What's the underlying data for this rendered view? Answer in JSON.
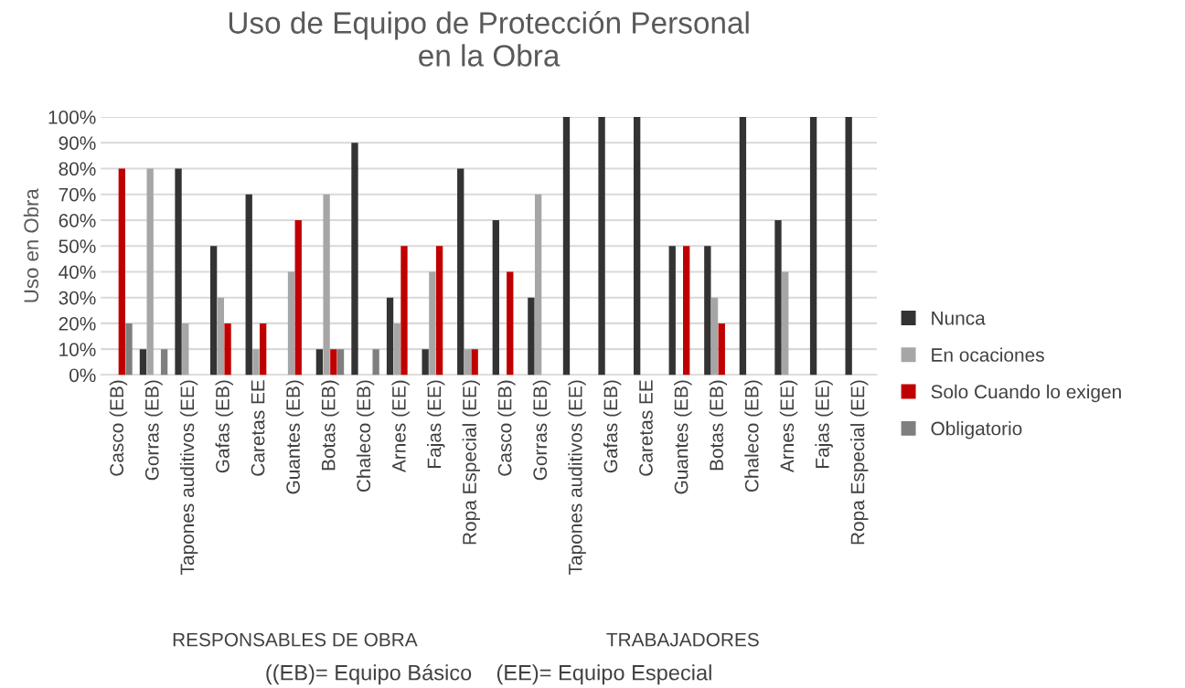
{
  "chart_data": {
    "type": "bar",
    "title": "Uso de Equipo de Protección Personal\nen la Obra",
    "ylabel": "Uso en Obra",
    "categories": [
      "Casco (EB)",
      "Gorras (EB)",
      "Tapones auditivos (EE)",
      "Gafas (EB)",
      "Caretas EE",
      "Guantes (EB)",
      "Botas (EB)",
      "Chaleco (EB)",
      "Arnes (EE)",
      "Fajas (EE)",
      "Ropa Especial (EE)",
      "Casco (EB)",
      "Gorras (EB)",
      "Tapones auditivos (EE)",
      "Gafas (EB)",
      "Caretas EE",
      "Guantes (EB)",
      "Botas (EB)",
      "Chaleco (EB)",
      "Arnes (EE)",
      "Fajas (EE)",
      "Ropa Especial (EE)"
    ],
    "series": [
      {
        "name": "Nunca",
        "color": "#333333",
        "values": [
          0,
          10,
          80,
          50,
          70,
          0,
          10,
          90,
          30,
          10,
          80,
          60,
          30,
          100,
          100,
          100,
          50,
          50,
          100,
          60,
          100,
          100
        ]
      },
      {
        "name": "En ocaciones",
        "color": "#a6a6a6",
        "values": [
          0,
          80,
          20,
          30,
          10,
          40,
          70,
          0,
          20,
          40,
          10,
          0,
          70,
          0,
          0,
          0,
          0,
          30,
          0,
          40,
          0,
          0
        ]
      },
      {
        "name": "Solo Cuando lo exigen",
        "color": "#c00000",
        "values": [
          80,
          0,
          0,
          20,
          20,
          60,
          10,
          0,
          50,
          50,
          10,
          40,
          0,
          0,
          0,
          0,
          50,
          20,
          0,
          0,
          0,
          0
        ]
      },
      {
        "name": "Obligatorio",
        "color": "#7f7f7f",
        "values": [
          20,
          10,
          0,
          0,
          0,
          0,
          10,
          10,
          0,
          0,
          0,
          0,
          0,
          0,
          0,
          0,
          0,
          0,
          0,
          0,
          0,
          0
        ]
      }
    ],
    "ylim": [
      0,
      100
    ],
    "yticks": [
      {
        "value": 0,
        "label": "0%"
      },
      {
        "value": 10,
        "label": "10%"
      },
      {
        "value": 20,
        "label": "20%"
      },
      {
        "value": 30,
        "label": "30%"
      },
      {
        "value": 40,
        "label": "40%"
      },
      {
        "value": 50,
        "label": "50%"
      },
      {
        "value": 60,
        "label": "60%"
      },
      {
        "value": 70,
        "label": "70%"
      },
      {
        "value": 80,
        "label": "80%"
      },
      {
        "value": 90,
        "label": "90%"
      },
      {
        "value": 100,
        "label": "100%"
      }
    ],
    "grid": "y",
    "legend": "right",
    "annotations": [
      "RESPONSABLES DE OBRA",
      "TRABAJADORES",
      "((EB)= Equipo Básico    (EE)= Equipo Especial"
    ]
  }
}
